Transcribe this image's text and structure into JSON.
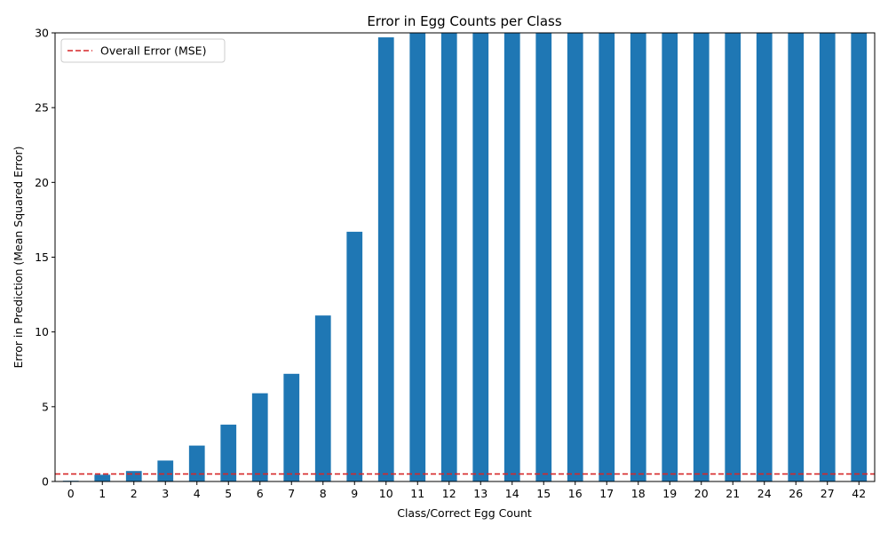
{
  "chart_data": {
    "type": "bar",
    "title": "Error in Egg Counts per Class",
    "xlabel": "Class/Correct Egg Count",
    "ylabel": "Error in Prediction (Mean Squared Error)",
    "categories": [
      "0",
      "1",
      "2",
      "3",
      "4",
      "5",
      "6",
      "7",
      "8",
      "9",
      "10",
      "11",
      "12",
      "13",
      "14",
      "15",
      "16",
      "17",
      "18",
      "19",
      "20",
      "21",
      "24",
      "26",
      "27",
      "42"
    ],
    "values": [
      0.05,
      0.45,
      0.7,
      1.4,
      2.4,
      3.8,
      5.9,
      7.2,
      11.1,
      16.7,
      29.7,
      30,
      30,
      30,
      30,
      30,
      30,
      30,
      30,
      30,
      30,
      30,
      30,
      30,
      30,
      30
    ],
    "ylim": [
      0,
      30
    ],
    "yticks": [
      0,
      5,
      10,
      15,
      20,
      25,
      30
    ],
    "bar_color": "#1f77b4",
    "reference_line": {
      "label": "Overall Error (MSE)",
      "value": 0.5,
      "color": "#d62728",
      "style": "dashed"
    },
    "legend_position": "top-left",
    "grid": false
  }
}
